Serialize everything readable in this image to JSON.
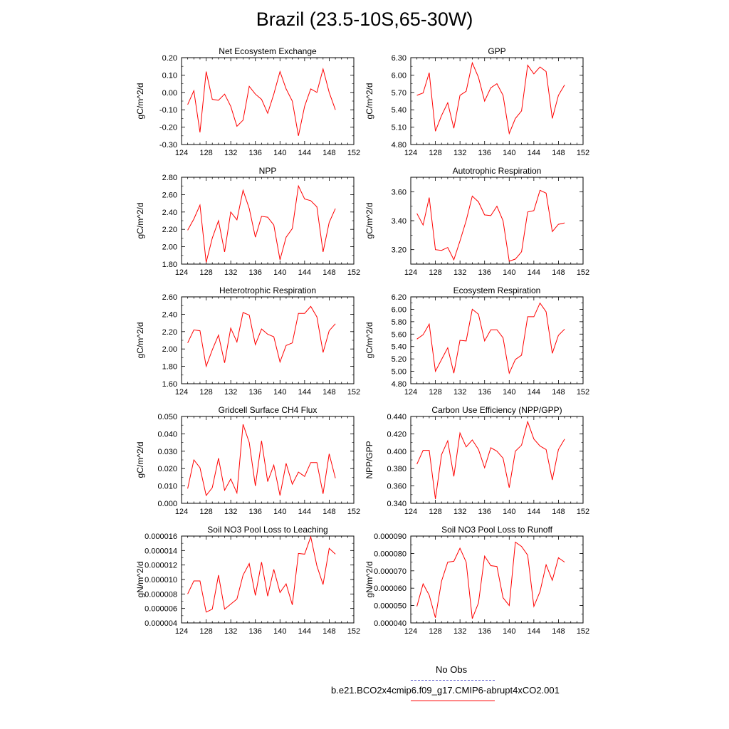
{
  "title": "Brazil (23.5-10S,65-30W)",
  "legend": {
    "obs_label": "No Obs",
    "obs_color": "#5555cc",
    "model_label": "b.e21.BCO2x4cmip6.f09_g17.CMIP6-abrupt4xCO2.001",
    "model_color": "#ff0000"
  },
  "chart_data": [
    {
      "type": "line",
      "title": "Net Ecosystem Exchange",
      "ylabel": "gC/m^2/d",
      "xlim": [
        124,
        152
      ],
      "xticks": [
        124,
        128,
        132,
        136,
        140,
        144,
        148,
        152
      ],
      "ylim": [
        -0.3,
        0.2
      ],
      "yticks": [
        "0.20",
        "0.10",
        "0.00",
        "-0.10",
        "-0.20",
        "-0.30"
      ],
      "x": [
        125,
        126,
        127,
        128,
        129,
        130,
        131,
        132,
        133,
        134,
        135,
        136,
        137,
        138,
        139,
        140,
        141,
        142,
        143,
        144,
        145,
        146,
        147,
        148,
        149
      ],
      "values": [
        -0.07,
        0.01,
        -0.23,
        0.12,
        -0.04,
        -0.045,
        -0.01,
        -0.08,
        -0.195,
        -0.16,
        0.035,
        -0.01,
        -0.04,
        -0.12,
        -0.01,
        0.12,
        0.02,
        -0.05,
        -0.25,
        -0.08,
        0.02,
        0.0,
        0.135,
        0.0,
        -0.1
      ]
    },
    {
      "type": "line",
      "title": "GPP",
      "ylabel": "gC/m^2/d",
      "xlim": [
        124,
        152
      ],
      "xticks": [
        124,
        128,
        132,
        136,
        140,
        144,
        148,
        152
      ],
      "ylim": [
        4.8,
        6.3
      ],
      "yticks": [
        "6.30",
        "6.00",
        "5.70",
        "5.40",
        "5.10",
        "4.80"
      ],
      "x": [
        125,
        126,
        127,
        128,
        129,
        130,
        131,
        132,
        133,
        134,
        135,
        136,
        137,
        138,
        139,
        140,
        141,
        142,
        143,
        144,
        145,
        146,
        147,
        148,
        149
      ],
      "values": [
        5.65,
        5.69,
        6.04,
        5.03,
        5.3,
        5.52,
        5.08,
        5.65,
        5.72,
        6.21,
        5.96,
        5.55,
        5.78,
        5.85,
        5.65,
        4.99,
        5.25,
        5.38,
        6.17,
        6.02,
        6.14,
        6.06,
        5.25,
        5.65,
        5.83
      ]
    },
    {
      "type": "line",
      "title": "NPP",
      "ylabel": "gC/m^2/d",
      "xlim": [
        124,
        152
      ],
      "xticks": [
        124,
        128,
        132,
        136,
        140,
        144,
        148,
        152
      ],
      "ylim": [
        1.8,
        2.8
      ],
      "yticks": [
        "2.80",
        "2.60",
        "2.40",
        "2.20",
        "2.00",
        "1.80"
      ],
      "x": [
        125,
        126,
        127,
        128,
        129,
        130,
        131,
        132,
        133,
        134,
        135,
        136,
        137,
        138,
        139,
        140,
        141,
        142,
        143,
        144,
        145,
        146,
        147,
        148,
        149
      ],
      "values": [
        2.19,
        2.32,
        2.48,
        1.82,
        2.1,
        2.3,
        1.94,
        2.4,
        2.31,
        2.65,
        2.44,
        2.11,
        2.35,
        2.34,
        2.25,
        1.85,
        2.11,
        2.21,
        2.7,
        2.55,
        2.53,
        2.46,
        1.94,
        2.28,
        2.44
      ]
    },
    {
      "type": "line",
      "title": "Autotrophic Respiration",
      "ylabel": "gC/m^2/d",
      "xlim": [
        124,
        152
      ],
      "xticks": [
        124,
        128,
        132,
        136,
        140,
        144,
        148,
        152
      ],
      "ylim": [
        3.1,
        3.7
      ],
      "yticks": [
        "3.60",
        "3.40",
        "3.20"
      ],
      "x": [
        125,
        126,
        127,
        128,
        129,
        130,
        131,
        132,
        133,
        134,
        135,
        136,
        137,
        138,
        139,
        140,
        141,
        142,
        143,
        144,
        145,
        146,
        147,
        148,
        149
      ],
      "values": [
        3.45,
        3.37,
        3.56,
        3.2,
        3.195,
        3.215,
        3.13,
        3.26,
        3.4,
        3.57,
        3.53,
        3.44,
        3.435,
        3.5,
        3.4,
        3.12,
        3.135,
        3.185,
        3.46,
        3.47,
        3.61,
        3.59,
        3.325,
        3.375,
        3.385
      ]
    },
    {
      "type": "line",
      "title": "Heterotrophic Respiration",
      "ylabel": "gC/m^2/d",
      "xlim": [
        124,
        152
      ],
      "xticks": [
        124,
        128,
        132,
        136,
        140,
        144,
        148,
        152
      ],
      "ylim": [
        1.6,
        2.6
      ],
      "yticks": [
        "2.60",
        "2.40",
        "2.20",
        "2.00",
        "1.80",
        "1.60"
      ],
      "x": [
        125,
        126,
        127,
        128,
        129,
        130,
        131,
        132,
        133,
        134,
        135,
        136,
        137,
        138,
        139,
        140,
        141,
        142,
        143,
        144,
        145,
        146,
        147,
        148,
        149
      ],
      "values": [
        2.07,
        2.22,
        2.21,
        1.8,
        1.99,
        2.16,
        1.84,
        2.24,
        2.08,
        2.42,
        2.39,
        2.05,
        2.23,
        2.17,
        2.14,
        1.85,
        2.04,
        2.07,
        2.41,
        2.41,
        2.49,
        2.37,
        1.96,
        2.21,
        2.29
      ]
    },
    {
      "type": "line",
      "title": "Ecosystem Respiration",
      "ylabel": "gC/m^2/d",
      "xlim": [
        124,
        152
      ],
      "xticks": [
        124,
        128,
        132,
        136,
        140,
        144,
        148,
        152
      ],
      "ylim": [
        4.8,
        6.2
      ],
      "yticks": [
        "6.20",
        "6.00",
        "5.80",
        "5.60",
        "5.40",
        "5.20",
        "5.00",
        "4.80"
      ],
      "x": [
        125,
        126,
        127,
        128,
        129,
        130,
        131,
        132,
        133,
        134,
        135,
        136,
        137,
        138,
        139,
        140,
        141,
        142,
        143,
        144,
        145,
        146,
        147,
        148,
        149
      ],
      "values": [
        5.52,
        5.59,
        5.76,
        5.0,
        5.19,
        5.38,
        4.97,
        5.5,
        5.49,
        6.0,
        5.92,
        5.49,
        5.67,
        5.67,
        5.54,
        4.97,
        5.19,
        5.26,
        5.88,
        5.88,
        6.1,
        5.96,
        5.29,
        5.58,
        5.68
      ]
    },
    {
      "type": "line",
      "title": "Gridcell Surface CH4 Flux",
      "ylabel": "gC/m^2/d",
      "xlim": [
        124,
        152
      ],
      "xticks": [
        124,
        128,
        132,
        136,
        140,
        144,
        148,
        152
      ],
      "ylim": [
        0.0,
        0.05
      ],
      "yticks": [
        "0.050",
        "0.040",
        "0.030",
        "0.020",
        "0.010",
        "0.000"
      ],
      "x": [
        125,
        126,
        127,
        128,
        129,
        130,
        131,
        132,
        133,
        134,
        135,
        136,
        137,
        138,
        139,
        140,
        141,
        142,
        143,
        144,
        145,
        146,
        147,
        148,
        149
      ],
      "values": [
        0.0085,
        0.025,
        0.0205,
        0.0045,
        0.009,
        0.026,
        0.0075,
        0.014,
        0.006,
        0.0455,
        0.035,
        0.01,
        0.036,
        0.0125,
        0.022,
        0.0045,
        0.023,
        0.011,
        0.018,
        0.0155,
        0.0235,
        0.0235,
        0.0055,
        0.0285,
        0.0145
      ]
    },
    {
      "type": "line",
      "title": "Carbon Use Efficiency (NPP/GPP)",
      "ylabel": "NPP/GPP",
      "xlim": [
        124,
        152
      ],
      "xticks": [
        124,
        128,
        132,
        136,
        140,
        144,
        148,
        152
      ],
      "ylim": [
        0.34,
        0.44
      ],
      "yticks": [
        "0.440",
        "0.420",
        "0.400",
        "0.380",
        "0.360",
        "0.340"
      ],
      "x": [
        125,
        126,
        127,
        128,
        129,
        130,
        131,
        132,
        133,
        134,
        135,
        136,
        137,
        138,
        139,
        140,
        141,
        142,
        143,
        144,
        145,
        146,
        147,
        148,
        149
      ],
      "values": [
        0.385,
        0.401,
        0.401,
        0.345,
        0.396,
        0.412,
        0.371,
        0.421,
        0.405,
        0.413,
        0.402,
        0.381,
        0.404,
        0.4,
        0.392,
        0.358,
        0.4,
        0.407,
        0.434,
        0.414,
        0.406,
        0.402,
        0.367,
        0.402,
        0.414
      ]
    },
    {
      "type": "line",
      "title": "Soil NO3 Pool Loss to Leaching",
      "ylabel": "gN/m^2/d",
      "xlim": [
        124,
        152
      ],
      "xticks": [
        124,
        128,
        132,
        136,
        140,
        144,
        148,
        152
      ],
      "ylim": [
        4e-06,
        1.6e-05
      ],
      "yticks": [
        "0.000016",
        "0.000014",
        "0.000012",
        "0.000010",
        "0.000008",
        "0.000006",
        "0.000004"
      ],
      "x": [
        125,
        126,
        127,
        128,
        129,
        130,
        131,
        132,
        133,
        134,
        135,
        136,
        137,
        138,
        139,
        140,
        141,
        142,
        143,
        144,
        145,
        146,
        147,
        148,
        149
      ],
      "values": [
        8e-06,
        9.8e-06,
        9.8e-06,
        5.5e-06,
        5.9e-06,
        1.06e-05,
        5.9e-06,
        6.6e-06,
        7.3e-06,
        1.06e-05,
        1.22e-05,
        7.8e-06,
        1.24e-05,
        7.7e-06,
        1.14e-05,
        8.2e-06,
        9.4e-06,
        6.5e-06,
        1.36e-05,
        1.35e-05,
        1.59e-05,
        1.19e-05,
        9.3e-06,
        1.43e-05,
        1.35e-05
      ]
    },
    {
      "type": "line",
      "title": "Soil NO3 Pool Loss to Runoff",
      "ylabel": "gN/m^2/d",
      "xlim": [
        124,
        152
      ],
      "xticks": [
        124,
        128,
        132,
        136,
        140,
        144,
        148,
        152
      ],
      "ylim": [
        4e-05,
        9e-05
      ],
      "yticks": [
        "0.000090",
        "0.000080",
        "0.000070",
        "0.000060",
        "0.000050",
        "0.000040"
      ],
      "x": [
        125,
        126,
        127,
        128,
        129,
        130,
        131,
        132,
        133,
        134,
        135,
        136,
        137,
        138,
        139,
        140,
        141,
        142,
        143,
        144,
        145,
        146,
        147,
        148,
        149
      ],
      "values": [
        4.95e-05,
        6.25e-05,
        5.6e-05,
        4.3e-05,
        6.4e-05,
        7.5e-05,
        7.55e-05,
        8.3e-05,
        7.5e-05,
        4.25e-05,
        5.15e-05,
        7.85e-05,
        7.3e-05,
        7.25e-05,
        5.45e-05,
        5e-05,
        8.65e-05,
        8.4e-05,
        7.9e-05,
        4.95e-05,
        5.8e-05,
        7.35e-05,
        6.45e-05,
        7.75e-05,
        7.5e-05
      ]
    }
  ]
}
